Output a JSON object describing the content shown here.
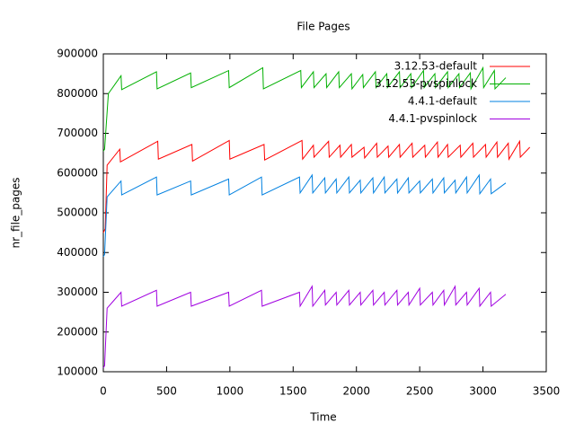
{
  "chart_data": {
    "type": "line",
    "title": "File Pages",
    "x_label": "Time",
    "y_label": "nr_file_pages",
    "xlim": [
      0,
      3500
    ],
    "xticks": [
      0,
      500,
      1000,
      1500,
      2000,
      2500,
      3000,
      3500
    ],
    "ylim": [
      100000,
      900000
    ],
    "yticks": [
      100000,
      200000,
      300000,
      400000,
      500000,
      600000,
      700000,
      800000,
      900000
    ],
    "grid": false,
    "legend": "top-right",
    "series": [
      {
        "name": "3.12.53-default",
        "color": "#ff0000",
        "x": [
          0,
          15,
          30,
          130,
          135,
          430,
          435,
          700,
          705,
          995,
          1000,
          1270,
          1275,
          1570,
          1575,
          1660,
          1665,
          1780,
          1785,
          1870,
          1875,
          1960,
          1965,
          2060,
          2065,
          2160,
          2165,
          2250,
          2255,
          2340,
          2345,
          2440,
          2445,
          2540,
          2545,
          2640,
          2645,
          2720,
          2725,
          2820,
          2825,
          2920,
          2925,
          3020,
          3025,
          3110,
          3115,
          3200,
          3205,
          3290,
          3295,
          3370
        ],
        "values": [
          450000,
          460000,
          620000,
          660000,
          628000,
          680000,
          635000,
          672000,
          630000,
          682000,
          635000,
          672000,
          633000,
          682000,
          635000,
          670000,
          640000,
          680000,
          640000,
          670000,
          640000,
          672000,
          640000,
          665000,
          638000,
          675000,
          640000,
          668000,
          640000,
          672000,
          640000,
          675000,
          640000,
          670000,
          640000,
          678000,
          640000,
          672000,
          640000,
          670000,
          640000,
          675000,
          640000,
          672000,
          640000,
          678000,
          640000,
          675000,
          635000,
          680000,
          640000,
          665000
        ]
      },
      {
        "name": "3.12.53-pvspinlock",
        "color": "#00b000",
        "x": [
          0,
          10,
          40,
          140,
          145,
          420,
          425,
          690,
          695,
          990,
          995,
          1260,
          1265,
          1560,
          1565,
          1660,
          1665,
          1760,
          1765,
          1860,
          1865,
          1960,
          1965,
          2050,
          2055,
          2150,
          2155,
          2240,
          2245,
          2340,
          2345,
          2430,
          2435,
          2530,
          2535,
          2620,
          2625,
          2720,
          2725,
          2810,
          2815,
          2900,
          2905,
          3000,
          3005,
          3090,
          3095,
          3180
        ],
        "values": [
          655000,
          660000,
          800000,
          845000,
          810000,
          855000,
          812000,
          852000,
          815000,
          858000,
          815000,
          865000,
          812000,
          858000,
          815000,
          855000,
          815000,
          850000,
          815000,
          855000,
          815000,
          850000,
          812000,
          848000,
          815000,
          855000,
          815000,
          850000,
          815000,
          855000,
          815000,
          850000,
          815000,
          858000,
          815000,
          850000,
          815000,
          855000,
          815000,
          850000,
          815000,
          852000,
          812000,
          865000,
          815000,
          858000,
          812000,
          840000
        ]
      },
      {
        "name": "4.4.1-default",
        "color": "#0080e0",
        "x": [
          0,
          10,
          30,
          140,
          145,
          420,
          425,
          690,
          695,
          990,
          995,
          1250,
          1255,
          1550,
          1555,
          1650,
          1655,
          1750,
          1755,
          1840,
          1845,
          1940,
          1945,
          2030,
          2035,
          2130,
          2135,
          2220,
          2225,
          2320,
          2325,
          2410,
          2415,
          2500,
          2505,
          2600,
          2605,
          2690,
          2695,
          2780,
          2785,
          2870,
          2875,
          2970,
          2975,
          3060,
          3065,
          3180
        ],
        "values": [
          390000,
          395000,
          540000,
          580000,
          545000,
          590000,
          545000,
          580000,
          545000,
          585000,
          545000,
          590000,
          545000,
          590000,
          550000,
          595000,
          550000,
          588000,
          550000,
          585000,
          550000,
          590000,
          550000,
          582000,
          550000,
          588000,
          550000,
          590000,
          550000,
          585000,
          550000,
          588000,
          550000,
          580000,
          550000,
          585000,
          550000,
          588000,
          550000,
          582000,
          550000,
          590000,
          550000,
          595000,
          548000,
          585000,
          548000,
          575000
        ]
      },
      {
        "name": "4.4.1-pvspinlock",
        "color": "#a000e0",
        "x": [
          0,
          10,
          30,
          140,
          145,
          420,
          425,
          690,
          695,
          990,
          995,
          1250,
          1255,
          1550,
          1555,
          1650,
          1655,
          1750,
          1755,
          1840,
          1845,
          1940,
          1945,
          2030,
          2035,
          2130,
          2135,
          2220,
          2225,
          2320,
          2325,
          2410,
          2415,
          2500,
          2505,
          2600,
          2605,
          2690,
          2695,
          2780,
          2785,
          2870,
          2875,
          2970,
          2975,
          3060,
          3065,
          3180
        ],
        "values": [
          110000,
          115000,
          260000,
          300000,
          265000,
          305000,
          265000,
          300000,
          265000,
          300000,
          265000,
          305000,
          265000,
          300000,
          265000,
          315000,
          265000,
          305000,
          268000,
          300000,
          268000,
          305000,
          268000,
          300000,
          268000,
          305000,
          268000,
          300000,
          268000,
          305000,
          268000,
          300000,
          268000,
          310000,
          268000,
          300000,
          268000,
          305000,
          268000,
          315000,
          268000,
          300000,
          268000,
          310000,
          265000,
          300000,
          265000,
          295000
        ]
      }
    ]
  }
}
